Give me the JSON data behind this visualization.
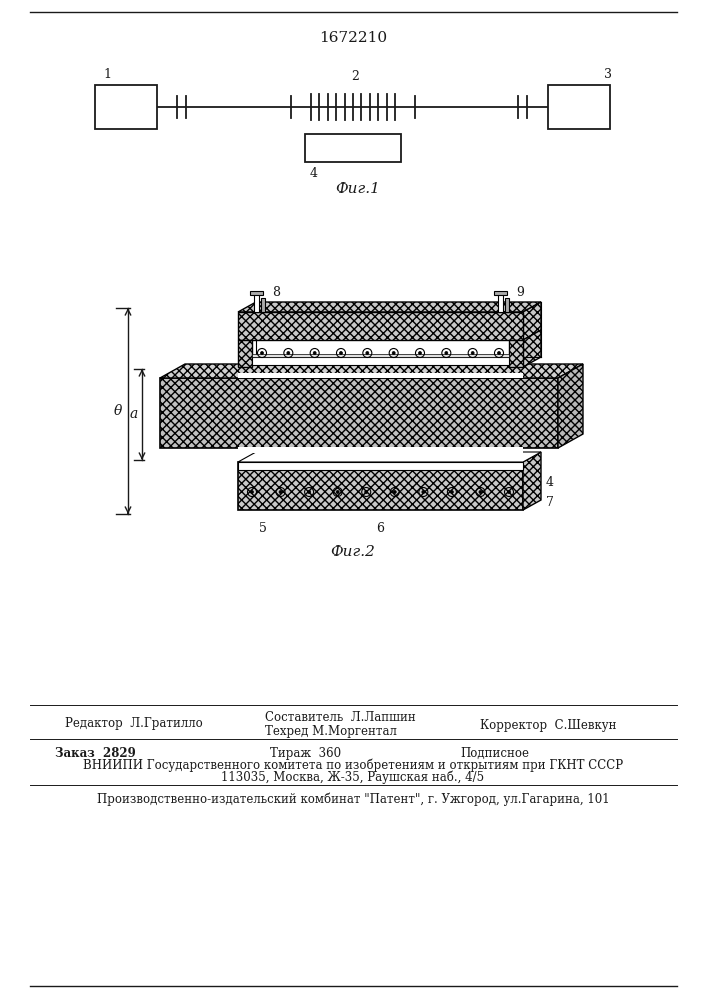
{
  "patent_number": "1672210",
  "fig1_caption": "Фиг.1",
  "fig2_caption": "Фиг.2",
  "label1": "1",
  "label2": "2",
  "label3": "3",
  "label4_fig1": "4",
  "label4_fig2": "4",
  "label5": "5",
  "label6": "6",
  "label7": "7",
  "label8": "8",
  "label9": "9",
  "dim_a": "a",
  "dim_theta": "θ",
  "editor_line": "Редактор  Л.Гратилло",
  "composer_line": "Составитель  Л.Лапшин",
  "techred_line": "Техред М.Моргентал",
  "corrector_line": "Корректор  С.Шевкун",
  "order_line": "Заказ  2829",
  "tirazh_line": "Тираж  360",
  "podpisnoe_line": "Подписное",
  "vnipi_line1": "ВНИИПИ Государственного комитета по изобретениям и открытиям при ГКНТ СССР",
  "vnipi_line2": "113035, Москва, Ж-35, Раушская наб., 4/5",
  "proizv_line": "Производственно-издательский комбинат \"Патент\", г. Ужгород, ул.Гагарина, 101",
  "bg_color": "#ffffff",
  "line_color": "#1a1a1a"
}
